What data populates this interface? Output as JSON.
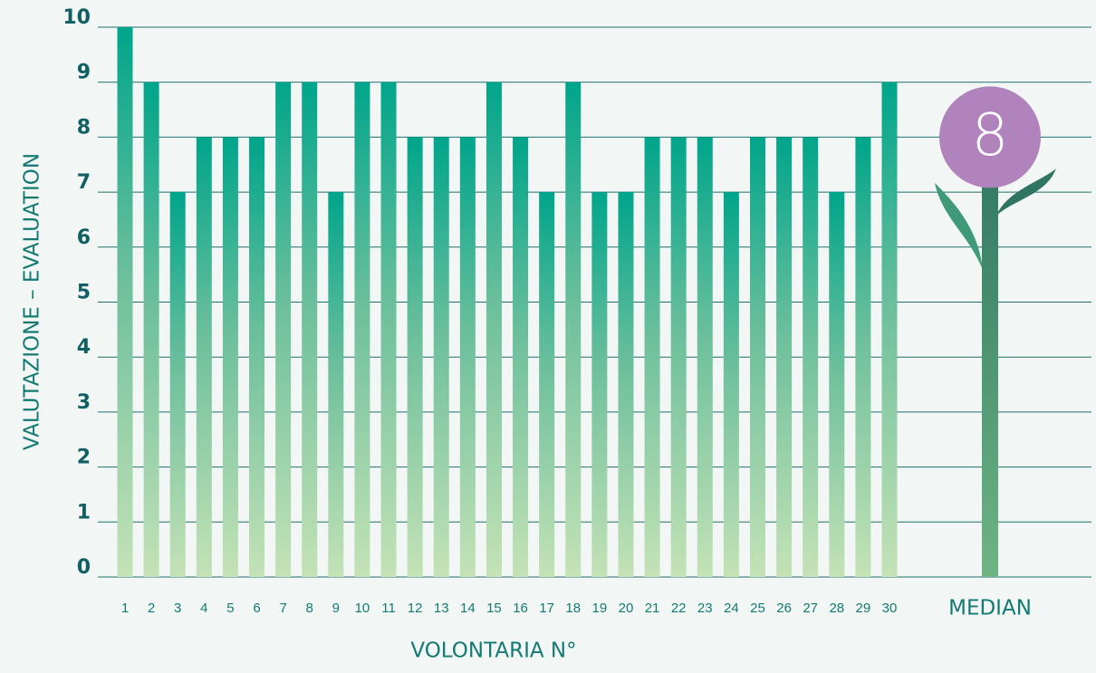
{
  "chart_data": {
    "type": "bar",
    "y_label": "VALUTAZIONE – EVALUATION",
    "x_label": "VOLONTARIA N°",
    "categories": [
      1,
      2,
      3,
      4,
      5,
      6,
      7,
      8,
      9,
      10,
      11,
      12,
      13,
      14,
      15,
      16,
      17,
      18,
      19,
      20,
      21,
      22,
      23,
      24,
      25,
      26,
      27,
      28,
      29,
      30
    ],
    "values": [
      10,
      9,
      7,
      8,
      8,
      8,
      9,
      9,
      7,
      9,
      9,
      8,
      8,
      8,
      9,
      8,
      7,
      9,
      7,
      7,
      8,
      8,
      8,
      7,
      8,
      8,
      8,
      7,
      8,
      9
    ],
    "median": {
      "label": "MEDIAN",
      "value": 8,
      "color": "#b083bd"
    },
    "ylim": [
      0,
      10
    ],
    "yticks": [
      0,
      1,
      2,
      3,
      4,
      5,
      6,
      7,
      8,
      9,
      10
    ],
    "grid": true
  }
}
